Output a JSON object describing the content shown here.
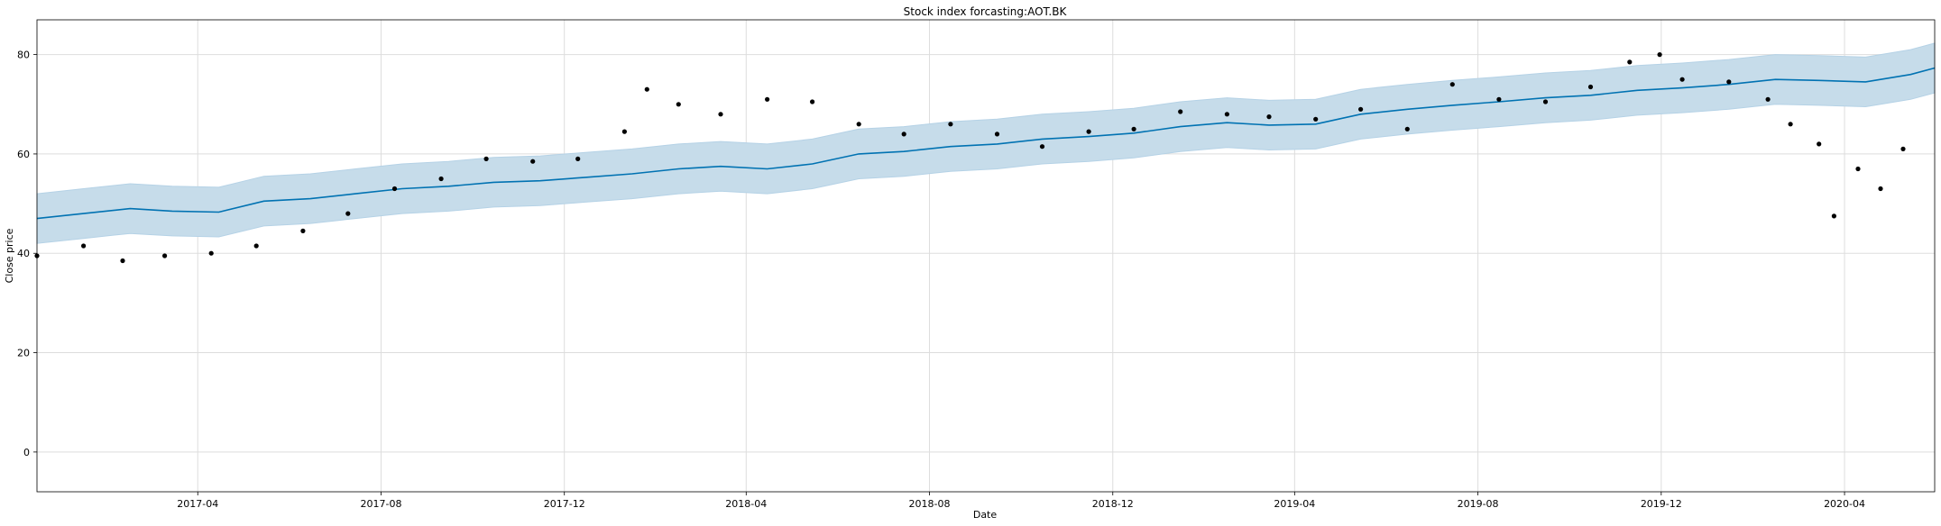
{
  "chart_data": {
    "type": "line",
    "title": "Stock index forcasting:AOT.BK",
    "xlabel": "Date",
    "ylabel": "Close price",
    "x_range": [
      "2016-12-15",
      "2020-05-31"
    ],
    "ylim": [
      -8,
      87
    ],
    "grid": true,
    "x_ticks": [
      "2017-04",
      "2017-08",
      "2017-12",
      "2018-04",
      "2018-08",
      "2018-12",
      "2019-04",
      "2019-08",
      "2019-12",
      "2020-04"
    ],
    "y_ticks": [
      0,
      20,
      40,
      60,
      80
    ],
    "colors": {
      "forecast": "#0072B2",
      "band": "#c6dcea",
      "actual": "#000000",
      "grid": "#dddddd"
    },
    "series": [
      {
        "role": "forecast",
        "x": [
          "2016-12-15",
          "2017-01-15",
          "2017-02-15",
          "2017-03-15",
          "2017-04-15",
          "2017-05-15",
          "2017-06-15",
          "2017-07-15",
          "2017-08-15",
          "2017-09-15",
          "2017-10-15",
          "2017-11-15",
          "2017-12-15",
          "2018-01-15",
          "2018-02-15",
          "2018-03-15",
          "2018-04-15",
          "2018-05-15",
          "2018-06-15",
          "2018-07-15",
          "2018-08-15",
          "2018-09-15",
          "2018-10-15",
          "2018-11-15",
          "2018-12-15",
          "2019-01-15",
          "2019-02-15",
          "2019-03-15",
          "2019-04-15",
          "2019-05-15",
          "2019-06-15",
          "2019-07-15",
          "2019-08-15",
          "2019-09-15",
          "2019-10-15",
          "2019-11-15",
          "2019-12-15",
          "2020-01-15",
          "2020-02-15",
          "2020-03-15",
          "2020-04-15",
          "2020-05-15",
          "2020-05-31"
        ],
        "y": [
          47.0,
          48.0,
          49.0,
          48.5,
          48.3,
          50.5,
          51.0,
          52.0,
          53.0,
          53.5,
          54.3,
          54.6,
          55.3,
          56.0,
          57.0,
          57.5,
          57.0,
          58.0,
          60.0,
          60.5,
          61.5,
          62.0,
          63.0,
          63.5,
          64.2,
          65.5,
          66.3,
          65.8,
          66.0,
          68.0,
          69.0,
          69.8,
          70.5,
          71.3,
          71.8,
          72.8,
          73.3,
          74.0,
          75.0,
          74.8,
          74.5,
          76.0,
          77.3
        ],
        "lower": [
          42.0,
          43.0,
          44.0,
          43.5,
          43.3,
          45.5,
          46.0,
          47.0,
          48.0,
          48.5,
          49.3,
          49.6,
          50.3,
          51.0,
          52.0,
          52.5,
          52.0,
          53.0,
          55.0,
          55.5,
          56.5,
          57.0,
          58.0,
          58.5,
          59.2,
          60.5,
          61.3,
          60.8,
          61.0,
          63.0,
          64.0,
          64.8,
          65.5,
          66.3,
          66.8,
          67.8,
          68.3,
          69.0,
          70.0,
          69.8,
          69.5,
          71.0,
          72.3
        ],
        "upper": [
          52.0,
          53.0,
          54.0,
          53.5,
          53.3,
          55.5,
          56.0,
          57.0,
          58.0,
          58.5,
          59.3,
          59.6,
          60.3,
          61.0,
          62.0,
          62.5,
          62.0,
          63.0,
          65.0,
          65.5,
          66.5,
          67.0,
          68.0,
          68.5,
          69.2,
          70.5,
          71.3,
          70.8,
          71.0,
          73.0,
          74.0,
          74.8,
          75.5,
          76.3,
          76.8,
          77.8,
          78.3,
          79.0,
          80.0,
          79.8,
          79.5,
          81.0,
          82.3
        ]
      },
      {
        "role": "actual",
        "x": [
          "2016-12-15",
          "2017-01-15",
          "2017-02-10",
          "2017-03-10",
          "2017-04-10",
          "2017-05-10",
          "2017-06-10",
          "2017-07-10",
          "2017-08-10",
          "2017-09-10",
          "2017-10-10",
          "2017-11-10",
          "2017-12-10",
          "2018-01-10",
          "2018-01-25",
          "2018-02-15",
          "2018-03-15",
          "2018-04-15",
          "2018-05-15",
          "2018-06-15",
          "2018-07-15",
          "2018-08-15",
          "2018-09-15",
          "2018-10-15",
          "2018-11-15",
          "2018-12-15",
          "2019-01-15",
          "2019-02-15",
          "2019-03-15",
          "2019-04-15",
          "2019-05-15",
          "2019-06-15",
          "2019-07-15",
          "2019-08-15",
          "2019-09-15",
          "2019-10-15",
          "2019-11-10",
          "2019-11-30",
          "2019-12-15",
          "2020-01-15",
          "2020-02-10",
          "2020-02-25",
          "2020-03-15",
          "2020-03-25",
          "2020-04-10",
          "2020-04-25",
          "2020-05-10"
        ],
        "y": [
          39.5,
          41.5,
          38.5,
          39.5,
          40.0,
          41.5,
          44.5,
          48.0,
          53.0,
          55.0,
          59.0,
          58.5,
          59.0,
          64.5,
          73.0,
          70.0,
          68.0,
          71.0,
          70.5,
          66.0,
          64.0,
          66.0,
          64.0,
          61.5,
          64.5,
          65.0,
          68.5,
          68.0,
          67.5,
          67.0,
          69.0,
          65.0,
          74.0,
          71.0,
          70.5,
          73.5,
          78.5,
          80.0,
          75.0,
          74.5,
          71.0,
          66.0,
          62.0,
          47.5,
          57.0,
          53.0,
          61.0
        ]
      }
    ]
  }
}
